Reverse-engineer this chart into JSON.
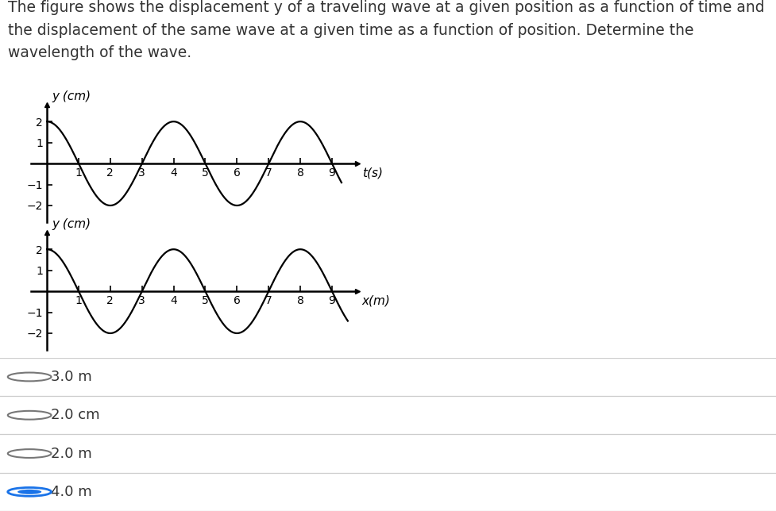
{
  "header_text": "The figure shows the displacement y of a traveling wave at a given position as a function of time and\nthe displacement of the same wave at a given time as a function of position. Determine the\nwavelength of the wave.",
  "graph1": {
    "xlabel": "t(s)",
    "ylabel": "y (cm)",
    "xlim": [
      -0.5,
      9.8
    ],
    "ylim": [
      -2.8,
      2.8
    ],
    "xticks": [
      1,
      2,
      3,
      4,
      5,
      6,
      7,
      8,
      9
    ],
    "yticks": [
      -2,
      -1,
      1,
      2
    ],
    "amplitude": 2,
    "period": 4,
    "phase": 1.5707963267948966,
    "x_start": 0,
    "x_end": 9.3
  },
  "graph2": {
    "xlabel": "x(m)",
    "ylabel": "y (cm)",
    "xlim": [
      -0.5,
      9.8
    ],
    "ylim": [
      -2.8,
      2.8
    ],
    "xticks": [
      1,
      2,
      3,
      4,
      5,
      6,
      7,
      8,
      9
    ],
    "yticks": [
      -2,
      -1,
      1,
      2
    ],
    "amplitude": 2,
    "period": 4,
    "phase": 1.5707963267948966,
    "x_start": 0,
    "x_end": 9.5
  },
  "choices": [
    {
      "text": "3.0 m",
      "selected": false
    },
    {
      "text": "2.0 cm",
      "selected": false
    },
    {
      "text": "2.0 m",
      "selected": false
    },
    {
      "text": "4.0 m",
      "selected": true
    }
  ],
  "bg_color": "#ffffff",
  "text_color": "#333333",
  "line_color": "#000000",
  "selected_color": "#1a73e8",
  "unselected_color": "#777777",
  "font_size_header": 13.5,
  "font_size_axis_label": 11,
  "font_size_tick": 10,
  "font_size_choice": 13
}
